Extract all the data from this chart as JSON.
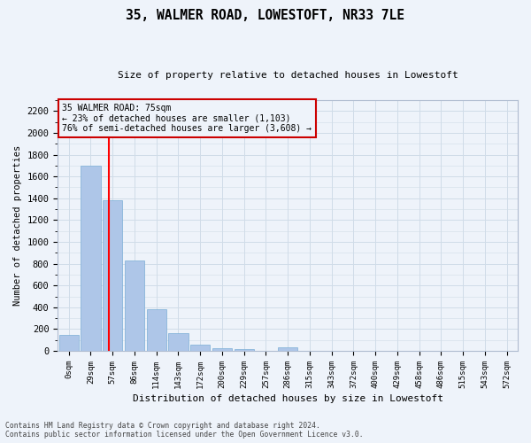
{
  "title": "35, WALMER ROAD, LOWESTOFT, NR33 7LE",
  "subtitle": "Size of property relative to detached houses in Lowestoft",
  "xlabel": "Distribution of detached houses by size in Lowestoft",
  "ylabel": "Number of detached properties",
  "bar_labels": [
    "0sqm",
    "29sqm",
    "57sqm",
    "86sqm",
    "114sqm",
    "143sqm",
    "172sqm",
    "200sqm",
    "229sqm",
    "257sqm",
    "286sqm",
    "315sqm",
    "343sqm",
    "372sqm",
    "400sqm",
    "429sqm",
    "458sqm",
    "486sqm",
    "515sqm",
    "543sqm",
    "572sqm"
  ],
  "bar_values": [
    150,
    1700,
    1380,
    830,
    385,
    165,
    60,
    25,
    15,
    0,
    30,
    0,
    0,
    0,
    0,
    0,
    0,
    0,
    0,
    0,
    0
  ],
  "bar_color": "#aec6e8",
  "bar_edge_color": "#7aaed6",
  "reference_line_label": "35 WALMER ROAD: 75sqm",
  "annotation_line1": "← 23% of detached houses are smaller (1,103)",
  "annotation_line2": "76% of semi-detached houses are larger (3,608) →",
  "ylim": [
    0,
    2300
  ],
  "yticks": [
    0,
    200,
    400,
    600,
    800,
    1000,
    1200,
    1400,
    1600,
    1800,
    2000,
    2200
  ],
  "annotation_box_color": "#cc0000",
  "grid_color": "#d0dce8",
  "background_color": "#eef3fa",
  "footer_line1": "Contains HM Land Registry data © Crown copyright and database right 2024.",
  "footer_line2": "Contains public sector information licensed under the Open Government Licence v3.0."
}
